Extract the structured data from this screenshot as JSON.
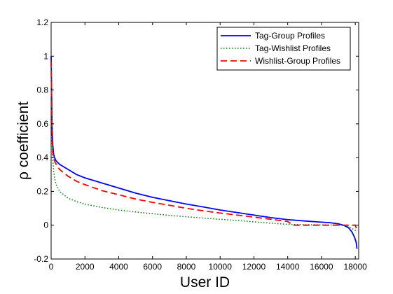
{
  "chart_data": {
    "type": "line",
    "title": "",
    "xlabel": "User ID",
    "ylabel": "ρ coefficient",
    "xlim": [
      0,
      18200
    ],
    "ylim": [
      -0.2,
      1.2
    ],
    "xticks": [
      0,
      2000,
      4000,
      6000,
      8000,
      10000,
      12000,
      14000,
      16000,
      18000
    ],
    "xtick_labels": [
      "0",
      "2000",
      "4000",
      "6000",
      "8000",
      "10000",
      "12000",
      "14000",
      "16000",
      "18000"
    ],
    "yticks": [
      -0.2,
      0,
      0.2,
      0.4,
      0.6,
      0.8,
      1,
      1.2
    ],
    "ytick_labels": [
      "-0.2",
      "0",
      "0.2",
      "0.4",
      "0.6",
      "0.8",
      "1",
      "1.2"
    ],
    "grid": false,
    "legend_position": "top-right",
    "series": [
      {
        "name": "Tag-Group Profiles",
        "color": "#0000ff",
        "style": "solid",
        "x": [
          0,
          20,
          50,
          100,
          150,
          200,
          300,
          500,
          1000,
          1500,
          2000,
          3000,
          4000,
          5000,
          6000,
          7000,
          8000,
          9000,
          10000,
          11000,
          12000,
          13000,
          14000,
          15000,
          16000,
          16500,
          17000,
          17300,
          17600,
          17800,
          17950,
          18050,
          18100
        ],
        "y": [
          1.0,
          0.85,
          0.6,
          0.47,
          0.42,
          0.4,
          0.38,
          0.36,
          0.33,
          0.3,
          0.28,
          0.25,
          0.22,
          0.19,
          0.165,
          0.145,
          0.125,
          0.108,
          0.09,
          0.075,
          0.06,
          0.045,
          0.033,
          0.025,
          0.018,
          0.015,
          0.008,
          0.0,
          -0.015,
          -0.04,
          -0.07,
          -0.1,
          -0.14
        ]
      },
      {
        "name": "Tag-Wishlist Profiles",
        "color": "#008000",
        "style": "dotted",
        "x": [
          0,
          20,
          50,
          100,
          150,
          200,
          300,
          500,
          1000,
          1500,
          2000,
          3000,
          4000,
          5000,
          6000,
          7000,
          8000,
          9000,
          10000,
          11000,
          12000,
          13000,
          14000,
          15000,
          16000,
          17000,
          17500,
          17800,
          18000,
          18100
        ],
        "y": [
          0.95,
          0.75,
          0.5,
          0.38,
          0.32,
          0.28,
          0.24,
          0.2,
          0.16,
          0.14,
          0.125,
          0.105,
          0.09,
          0.078,
          0.068,
          0.058,
          0.05,
          0.042,
          0.035,
          0.028,
          0.02,
          0.012,
          0.005,
          0.003,
          0.002,
          0.001,
          -0.005,
          -0.02,
          -0.03,
          -0.04
        ]
      },
      {
        "name": "Wishlist-Group Profiles",
        "color": "#ff0000",
        "style": "dashed",
        "x": [
          0,
          20,
          50,
          100,
          150,
          200,
          300,
          500,
          1000,
          1500,
          2000,
          3000,
          4000,
          5000,
          6000,
          7000,
          8000,
          9000,
          10000,
          11000,
          12000,
          13000,
          14000,
          14300,
          15000,
          16000,
          17000,
          17500,
          18000,
          18100
        ],
        "y": [
          0.97,
          0.8,
          0.55,
          0.43,
          0.4,
          0.38,
          0.36,
          0.33,
          0.29,
          0.26,
          0.24,
          0.205,
          0.18,
          0.155,
          0.135,
          0.118,
          0.1,
          0.085,
          0.072,
          0.06,
          0.048,
          0.035,
          0.022,
          0.0,
          0.0,
          0.0,
          0.0,
          0.0,
          0.0,
          -0.03
        ]
      }
    ]
  }
}
